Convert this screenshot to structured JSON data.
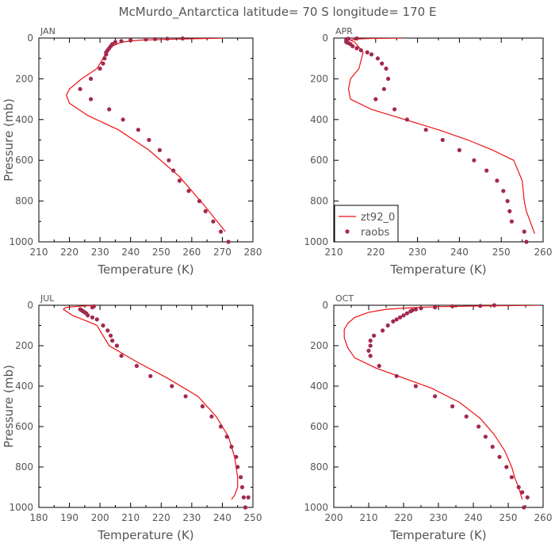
{
  "title": "McMurdo_Antarctica  latitude= 70 S longitude= 170 E",
  "colors": {
    "model": "#ee1111",
    "obs": "#a3284f",
    "text": "#555555"
  },
  "legend": {
    "model_label": "zt92_0",
    "obs_label": "raobs",
    "placement": "lower-right of APR panel"
  },
  "chart_data": [
    {
      "type": "line+scatter",
      "panel": "JAN",
      "xlabel": "Temperature (K)",
      "ylabel": "Pressure (mb)",
      "xlim": [
        210,
        280
      ],
      "ylim": [
        1000,
        0
      ],
      "xticks": [
        210,
        220,
        230,
        240,
        250,
        260,
        270,
        280
      ],
      "yticks": [
        0,
        200,
        400,
        600,
        800,
        1000
      ],
      "model": {
        "name": "zt92_0",
        "t": [
          271,
          255,
          243,
          237,
          234,
          232,
          231,
          229,
          224,
          220,
          219,
          220,
          226,
          236,
          246,
          256,
          264,
          271
        ],
        "p": [
          0,
          5,
          10,
          20,
          40,
          70,
          100,
          150,
          200,
          250,
          280,
          320,
          380,
          450,
          550,
          680,
          820,
          950
        ]
      },
      "obs": {
        "name": "raobs",
        "t": [
          257,
          252,
          248,
          245,
          240,
          237,
          235,
          234,
          233.5,
          233,
          232.5,
          232,
          232,
          231.5,
          231,
          230,
          227,
          223.5,
          227,
          233,
          237.5,
          242.5,
          246,
          249.5,
          252.5,
          254,
          256,
          259,
          262.5,
          264.5,
          267,
          269.5,
          272
        ],
        "p": [
          2,
          3,
          5,
          7,
          10,
          15,
          20,
          30,
          40,
          50,
          60,
          70,
          80,
          100,
          125,
          150,
          200,
          250,
          300,
          350,
          400,
          450,
          500,
          550,
          600,
          650,
          700,
          750,
          800,
          850,
          900,
          950,
          1000
        ]
      }
    },
    {
      "type": "line+scatter",
      "panel": "APR",
      "xlabel": "Temperature (K)",
      "ylabel": "",
      "xlim": [
        210,
        260
      ],
      "ylim": [
        1000,
        0
      ],
      "xticks": [
        210,
        220,
        230,
        240,
        250,
        260
      ],
      "yticks": [
        0,
        200,
        400,
        600,
        800,
        1000
      ],
      "model": {
        "name": "zt92_0",
        "t": [
          227,
          219,
          215,
          214,
          215,
          217,
          216,
          214,
          213.5,
          214,
          219,
          227,
          235,
          242,
          248,
          253,
          255,
          255.5,
          256,
          258
        ],
        "p": [
          0,
          2,
          5,
          10,
          20,
          70,
          150,
          200,
          250,
          300,
          350,
          400,
          450,
          500,
          550,
          600,
          700,
          800,
          850,
          960
        ]
      },
      "obs": {
        "name": "raobs",
        "t": [
          215.5,
          213.5,
          213,
          213,
          213,
          213,
          213.5,
          214,
          214.5,
          215.5,
          216.5,
          218,
          219,
          220.5,
          221.5,
          222.5,
          223,
          222,
          220,
          224.5,
          227.5,
          232,
          236,
          240,
          243.5,
          246.5,
          249,
          250.5,
          251.5,
          252,
          252.5,
          255.5,
          256
        ],
        "p": [
          2,
          3,
          5,
          10,
          15,
          20,
          25,
          30,
          40,
          50,
          60,
          70,
          80,
          100,
          125,
          150,
          200,
          250,
          300,
          350,
          400,
          450,
          500,
          550,
          600,
          650,
          700,
          750,
          800,
          850,
          900,
          950,
          1000
        ]
      }
    },
    {
      "type": "line+scatter",
      "panel": "JUL",
      "xlabel": "Temperature (K)",
      "ylabel": "Pressure (mb)",
      "xlim": [
        180,
        250
      ],
      "ylim": [
        1000,
        0
      ],
      "xticks": [
        180,
        190,
        200,
        210,
        220,
        230,
        240,
        250
      ],
      "yticks": [
        0,
        200,
        400,
        600,
        800,
        1000
      ],
      "model": {
        "name": "zt92_0",
        "t": [
          199,
          193,
          189,
          188,
          191,
          196,
          199,
          201,
          203,
          212,
          222,
          232,
          238,
          242,
          244,
          245,
          245,
          244,
          243
        ],
        "p": [
          0,
          5,
          10,
          20,
          50,
          80,
          100,
          150,
          200,
          280,
          360,
          450,
          550,
          650,
          750,
          850,
          900,
          940,
          960
        ]
      },
      "obs": {
        "name": "raobs",
        "t": [
          198,
          197.5,
          193.5,
          194,
          194.5,
          195,
          195.5,
          196,
          197.5,
          199,
          201,
          202.5,
          203.5,
          204,
          205.5,
          207,
          212,
          216.5,
          223.5,
          228,
          233.5,
          236.5,
          239.5,
          241.5,
          243,
          244.5,
          245,
          246,
          246.5,
          247,
          247.5,
          248.5,
          247.5
        ],
        "p": [
          5,
          10,
          20,
          25,
          30,
          35,
          40,
          50,
          60,
          70,
          100,
          125,
          150,
          175,
          200,
          250,
          300,
          350,
          400,
          450,
          500,
          550,
          600,
          650,
          700,
          750,
          800,
          850,
          900,
          950,
          1000,
          950,
          1000
        ]
      }
    },
    {
      "type": "line+scatter",
      "panel": "OCT",
      "xlabel": "Temperature (K)",
      "ylabel": "",
      "xlim": [
        200,
        260
      ],
      "ylim": [
        1000,
        0
      ],
      "xticks": [
        200,
        210,
        220,
        230,
        240,
        250,
        260
      ],
      "yticks": [
        0,
        200,
        400,
        600,
        800,
        1000
      ],
      "model": {
        "name": "zt92_0",
        "t": [
          259,
          250,
          240,
          230,
          222,
          215,
          210,
          206,
          204,
          203,
          203,
          204,
          206,
          212,
          220,
          228,
          236,
          242,
          246,
          249,
          251,
          252,
          253,
          254
        ],
        "p": [
          0,
          2,
          4,
          7,
          12,
          20,
          35,
          60,
          90,
          120,
          160,
          210,
          260,
          310,
          360,
          410,
          480,
          560,
          640,
          720,
          800,
          860,
          900,
          960
        ]
      },
      "obs": {
        "name": "raobs",
        "t": [
          246,
          242,
          234,
          229,
          225,
          223.5,
          222.5,
          222,
          221,
          220,
          219,
          218,
          217,
          215.5,
          214,
          211.5,
          210.5,
          210.5,
          210,
          210.5,
          213,
          218,
          223.5,
          229,
          234,
          238,
          241.5,
          243.5,
          245.5,
          247.5,
          249.5,
          251,
          253,
          254,
          255.5,
          254.5
        ],
        "p": [
          0,
          3,
          5,
          10,
          15,
          20,
          25,
          30,
          40,
          50,
          60,
          70,
          80,
          100,
          125,
          150,
          175,
          200,
          225,
          250,
          300,
          350,
          400,
          450,
          500,
          550,
          600,
          650,
          700,
          750,
          800,
          850,
          900,
          925,
          950,
          1000
        ]
      }
    }
  ]
}
